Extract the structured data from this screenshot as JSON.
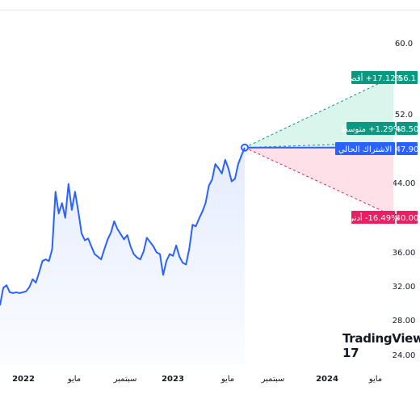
{
  "watermark": "TradingView",
  "colors": {
    "line": "#2962ff",
    "high": "#089981",
    "avg": "#089981",
    "current": "#2962ff",
    "low": "#e91e63",
    "upper_fill": "#d9f5ec",
    "lower_fill": "#fde0e8"
  },
  "chart_data": {
    "type": "line",
    "title": "",
    "ylim": [
      24,
      60
    ],
    "y_ticks": [
      "60.0",
      "52.0",
      "48.50",
      "44.00",
      "40.00",
      "36.00",
      "32.00",
      "28.00",
      "24.00"
    ],
    "x_ticks": [
      {
        "label": "2022",
        "year": true
      },
      {
        "label": "مايو",
        "year": false
      },
      {
        "label": "سبتمبر",
        "year": false
      },
      {
        "label": "2023",
        "year": true
      },
      {
        "label": "مايو",
        "year": false
      },
      {
        "label": "سبتمبر",
        "year": false
      },
      {
        "label": "2024",
        "year": true
      },
      {
        "label": "مايو",
        "year": false
      }
    ],
    "series": [
      {
        "values": [
          29.7,
          31.7,
          32.0,
          31.2,
          31.1,
          31.2,
          31.1,
          31.2,
          31.3,
          31.8,
          32.7,
          32.3,
          33.5,
          34.8,
          35.0,
          34.8,
          36.2,
          42.8,
          40.3,
          41.5,
          39.8,
          43.7,
          40.7,
          42.8,
          40.5,
          38.0,
          37.2,
          37.4,
          36.5,
          35.6,
          35.3,
          35.0,
          36.2,
          37.3,
          38.1,
          39.4,
          38.5,
          37.9,
          37.3,
          37.8,
          36.5,
          35.6,
          35.2,
          35.0,
          35.9,
          37.5,
          37.0,
          36.5,
          35.8,
          35.6,
          33.2,
          34.8,
          35.6,
          35.4,
          36.6,
          35.3,
          34.6,
          34.4,
          36.2,
          39.0,
          38.8,
          39.7,
          40.5,
          41.5,
          43.5,
          44.2,
          46.0,
          45.5,
          44.9,
          46.5,
          45.5,
          44.0,
          44.3,
          46.0,
          47.0,
          47.9
        ]
      }
    ],
    "forecast": {
      "start": 47.9,
      "high": {
        "value": 56.1,
        "value_label": "56.1",
        "label": "‎+17.12% أقصى"
      },
      "average": {
        "value": 48.5,
        "value_label": "48.50",
        "label": "‎+1.29% متوسط"
      },
      "current": {
        "value": 47.9,
        "value_label": "47.90",
        "label": "الاشتراك الحالي"
      },
      "low": {
        "value": 40.0,
        "value_label": "40.00",
        "label": "‎-16.49% أدنى"
      }
    }
  }
}
